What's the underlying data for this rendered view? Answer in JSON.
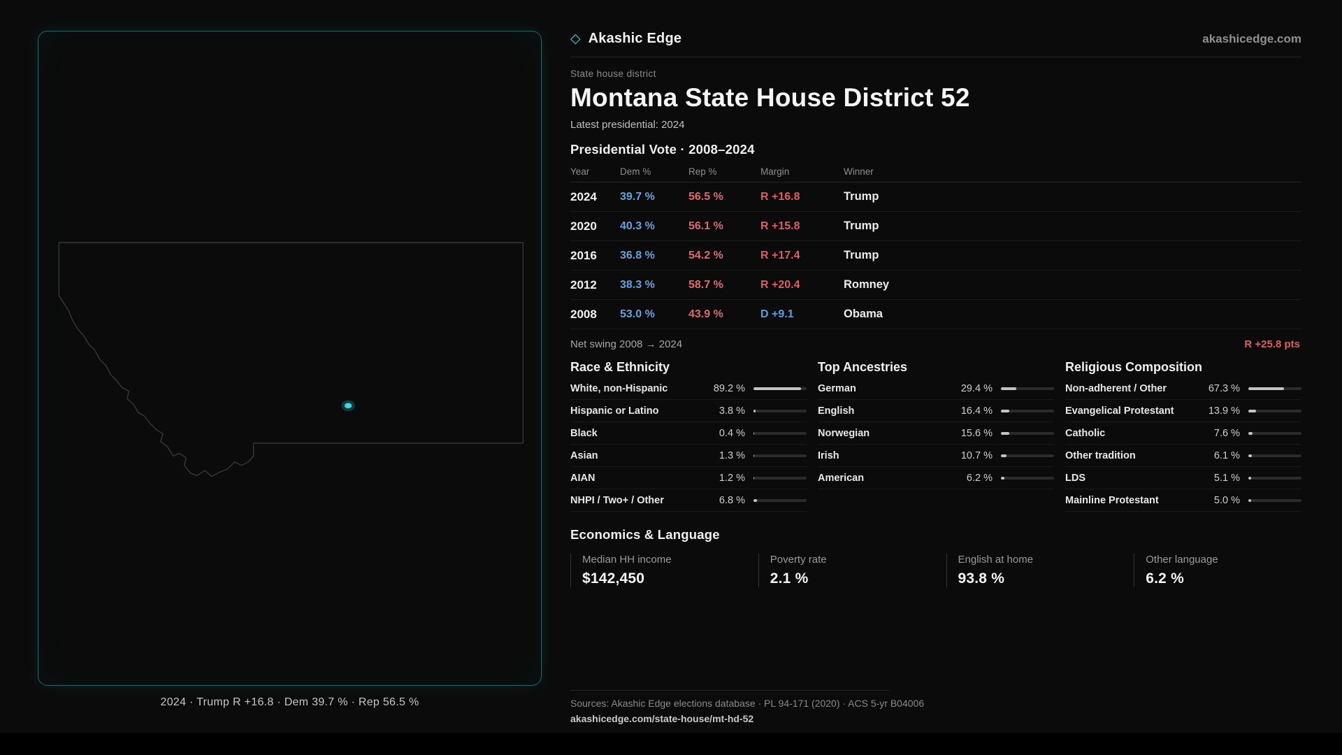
{
  "colors": {
    "dem": "#64a2e0",
    "rep": "#e06a6a",
    "swing": "#e05e5e",
    "accent": "#3bd4da"
  },
  "brand": {
    "logo": "◇",
    "name": "Akashic Edge",
    "site": "akashicedge.com"
  },
  "header": {
    "kicker": "State house district",
    "title": "Montana State House District 52",
    "subtitle": "Latest presidential: 2024"
  },
  "map": {
    "caption": "2024 · Trump R +16.8 · Dem 39.7 % · Rep 56.5 %"
  },
  "vote": {
    "title": "Presidential Vote · 2008–2024",
    "headers": [
      "Year",
      "Dem %",
      "Rep %",
      "Margin",
      "Winner"
    ],
    "rows": [
      {
        "year": "2024",
        "dem": "39.7 %",
        "rep": "56.5 %",
        "margin": "R +16.8",
        "margin_color": "#e05e5e",
        "winner": "Trump"
      },
      {
        "year": "2020",
        "dem": "40.3 %",
        "rep": "56.1 %",
        "margin": "R +15.8",
        "margin_color": "#e05e5e",
        "winner": "Trump"
      },
      {
        "year": "2016",
        "dem": "36.8 %",
        "rep": "54.2 %",
        "margin": "R +17.4",
        "margin_color": "#e05e5e",
        "winner": "Trump"
      },
      {
        "year": "2012",
        "dem": "38.3 %",
        "rep": "58.7 %",
        "margin": "R +20.4",
        "margin_color": "#e05e5e",
        "winner": "Romney"
      },
      {
        "year": "2008",
        "dem": "53.0 %",
        "rep": "43.9 %",
        "margin": "D +9.1",
        "margin_color": "#5b9fe6",
        "winner": "Obama"
      }
    ],
    "net_swing_label": "Net swing 2008 → 2024",
    "net_swing_value": "R +25.8 pts"
  },
  "demographics": {
    "race": {
      "title": "Race & Ethnicity",
      "rows": [
        {
          "label": "White, non-Hispanic",
          "value": "89.2 %",
          "pct": 89.2
        },
        {
          "label": "Hispanic or Latino",
          "value": "3.8 %",
          "pct": 3.8
        },
        {
          "label": "Black",
          "value": "0.4 %",
          "pct": 0.4
        },
        {
          "label": "Asian",
          "value": "1.3 %",
          "pct": 1.3
        },
        {
          "label": "AIAN",
          "value": "1.2 %",
          "pct": 1.2
        },
        {
          "label": "NHPI / Two+ / Other",
          "value": "6.8 %",
          "pct": 6.8
        }
      ]
    },
    "ancestries": {
      "title": "Top Ancestries",
      "rows": [
        {
          "label": "German",
          "value": "29.4 %",
          "pct": 29.4
        },
        {
          "label": "English",
          "value": "16.4 %",
          "pct": 16.4
        },
        {
          "label": "Norwegian",
          "value": "15.6 %",
          "pct": 15.6
        },
        {
          "label": "Irish",
          "value": "10.7 %",
          "pct": 10.7
        },
        {
          "label": "American",
          "value": "6.2 %",
          "pct": 6.2
        }
      ]
    },
    "religion": {
      "title": "Religious Composition",
      "rows": [
        {
          "label": "Non-adherent / Other",
          "value": "67.3 %",
          "pct": 67.3
        },
        {
          "label": "Evangelical Protestant",
          "value": "13.9 %",
          "pct": 13.9
        },
        {
          "label": "Catholic",
          "value": "7.6 %",
          "pct": 7.6
        },
        {
          "label": "Other tradition",
          "value": "6.1 %",
          "pct": 6.1
        },
        {
          "label": "LDS",
          "value": "5.1 %",
          "pct": 5.1
        },
        {
          "label": "Mainline Protestant",
          "value": "5.0 %",
          "pct": 5.0
        }
      ]
    }
  },
  "economics": {
    "title": "Economics & Language",
    "stats": [
      {
        "label": "Median HH income",
        "value": "$142,450"
      },
      {
        "label": "Poverty rate",
        "value": "2.1 %"
      },
      {
        "label": "English at home",
        "value": "93.8 %"
      },
      {
        "label": "Other language",
        "value": "6.2 %"
      }
    ]
  },
  "footer": {
    "sources": "Sources: Akashic Edge elections database · PL 94-171 (2020) · ACS 5-yr B04006",
    "permalink": "akashicedge.com/state-house/mt-hd-52"
  }
}
